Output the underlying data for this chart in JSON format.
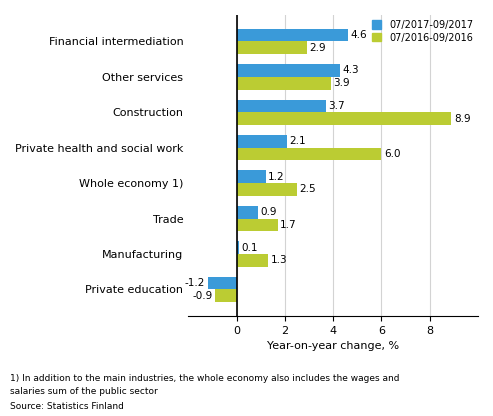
{
  "categories": [
    "Financial intermediation",
    "Other services",
    "Construction",
    "Private health and social work",
    "Whole economy 1)",
    "Trade",
    "Manufacturing",
    "Private education"
  ],
  "series1": [
    4.6,
    4.3,
    3.7,
    2.1,
    1.2,
    0.9,
    0.1,
    -1.2
  ],
  "series2": [
    2.9,
    3.9,
    8.9,
    6.0,
    2.5,
    1.7,
    1.3,
    -0.9
  ],
  "color1": "#3A9AD9",
  "color2": "#BBCC33",
  "legend1": "07/2017-09/2017",
  "legend2": "07/2016-09/2016",
  "xlabel": "Year-on-year change, %",
  "xlim": [
    -2,
    10
  ],
  "xticks": [
    0,
    2,
    4,
    6,
    8
  ],
  "footnote1": "1) In addition to the main industries, the whole economy also includes the wages and",
  "footnote2": "salaries sum of the public sector",
  "source": "Source: Statistics Finland",
  "bar_height": 0.36
}
